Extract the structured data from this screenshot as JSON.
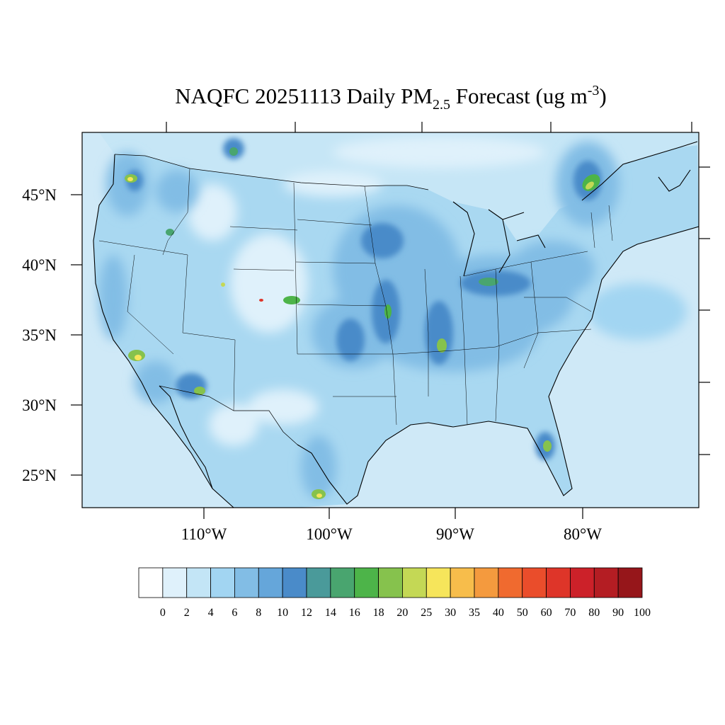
{
  "title": {
    "main": "NAQFC 20251113 Daily PM",
    "subscript": "2.5",
    "middle": " Forecast (ug m",
    "superscript": "-3",
    "end": ")"
  },
  "map": {
    "lat_labels": [
      "45°N",
      "40°N",
      "35°N",
      "30°N",
      "25°N"
    ],
    "lon_labels": [
      "110°W",
      "100°W",
      "90°W",
      "80°W"
    ],
    "ocean_color": "#cfe9f7",
    "base_color": "#a8d8f0"
  },
  "colorbar": {
    "labels": [
      "0",
      "2",
      "4",
      "6",
      "8",
      "10",
      "12",
      "14",
      "16",
      "18",
      "20",
      "25",
      "30",
      "35",
      "40",
      "50",
      "60",
      "70",
      "80",
      "90",
      "100"
    ],
    "colors": [
      "#ffffff",
      "#dff1fb",
      "#c3e5f6",
      "#a2d5f2",
      "#82bde5",
      "#65a6da",
      "#4a8bc9",
      "#4a9a9a",
      "#49a56f",
      "#4db449",
      "#86c24d",
      "#c4d855",
      "#f6e55b",
      "#f7bd4b",
      "#f49a3e",
      "#f06a2f",
      "#ea4d2b",
      "#de3529",
      "#cc2129",
      "#b41d23",
      "#96161a"
    ]
  }
}
